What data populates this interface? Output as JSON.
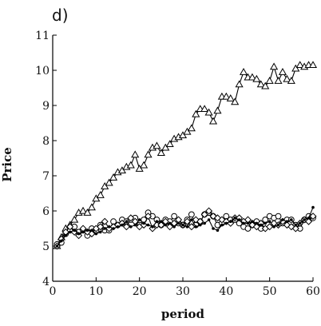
{
  "chart_data": {
    "type": "line",
    "panel_label": "d)",
    "xlabel": "period",
    "ylabel": "Price",
    "xlim": [
      0,
      60
    ],
    "ylim": [
      4,
      11
    ],
    "xticks": [
      0,
      10,
      20,
      30,
      40,
      50,
      60
    ],
    "yticks": [
      4,
      5,
      6,
      7,
      8,
      9,
      10,
      11
    ],
    "grid": false,
    "legend": "none",
    "x": [
      1,
      2,
      3,
      4,
      5,
      6,
      7,
      8,
      9,
      10,
      11,
      12,
      13,
      14,
      15,
      16,
      17,
      18,
      19,
      20,
      21,
      22,
      23,
      24,
      25,
      26,
      27,
      28,
      29,
      30,
      31,
      32,
      33,
      34,
      35,
      36,
      37,
      38,
      39,
      40,
      41,
      42,
      43,
      44,
      45,
      46,
      47,
      48,
      49,
      50,
      51,
      52,
      53,
      54,
      55,
      56,
      57,
      58,
      59,
      60
    ],
    "series": [
      {
        "marker": "triangle",
        "color": "#000000",
        "values": [
          5.0,
          5.25,
          5.5,
          5.6,
          5.75,
          5.95,
          6.0,
          5.95,
          6.1,
          6.35,
          6.45,
          6.7,
          6.8,
          6.95,
          7.1,
          7.15,
          7.25,
          7.3,
          7.6,
          7.2,
          7.3,
          7.6,
          7.8,
          7.85,
          7.65,
          7.8,
          7.9,
          8.05,
          8.1,
          8.15,
          8.25,
          8.35,
          8.75,
          8.9,
          8.9,
          8.8,
          8.55,
          8.85,
          9.25,
          9.25,
          9.2,
          9.1,
          9.6,
          9.95,
          9.8,
          9.8,
          9.75,
          9.6,
          9.55,
          9.7,
          10.1,
          9.7,
          9.95,
          9.75,
          9.7,
          10.05,
          10.15,
          10.1,
          10.15,
          10.15
        ]
      },
      {
        "marker": "circle",
        "color": "#000000",
        "values": [
          5.05,
          5.1,
          5.35,
          5.45,
          5.55,
          5.4,
          5.45,
          5.3,
          5.5,
          5.45,
          5.6,
          5.45,
          5.45,
          5.7,
          5.6,
          5.75,
          5.7,
          5.75,
          5.8,
          5.6,
          5.75,
          5.95,
          5.85,
          5.75,
          5.6,
          5.75,
          5.7,
          5.85,
          5.65,
          5.6,
          5.75,
          5.9,
          5.6,
          5.7,
          5.9,
          5.95,
          5.85,
          5.6,
          5.65,
          5.85,
          5.75,
          5.75,
          5.65,
          5.55,
          5.5,
          5.6,
          5.7,
          5.5,
          5.75,
          5.85,
          5.8,
          5.85,
          5.65,
          5.75,
          5.75,
          5.6,
          5.5,
          5.75,
          5.85,
          5.8
        ]
      },
      {
        "marker": "diamond",
        "color": "#000000",
        "values": [
          5.0,
          5.2,
          5.4,
          5.55,
          5.4,
          5.3,
          5.5,
          5.4,
          5.35,
          5.5,
          5.55,
          5.7,
          5.5,
          5.55,
          5.6,
          5.65,
          5.55,
          5.8,
          5.7,
          5.55,
          5.6,
          5.85,
          5.5,
          5.6,
          5.6,
          5.7,
          5.55,
          5.65,
          5.75,
          5.6,
          5.7,
          5.55,
          5.75,
          5.7,
          5.9,
          6.0,
          5.85,
          5.8,
          5.75,
          5.7,
          5.65,
          5.8,
          5.8,
          5.7,
          5.75,
          5.6,
          5.55,
          5.65,
          5.5,
          5.55,
          5.65,
          5.6,
          5.7,
          5.6,
          5.55,
          5.5,
          5.65,
          5.75,
          5.7,
          5.85
        ]
      },
      {
        "marker": "dot",
        "color": "#000000",
        "values": [
          5.0,
          5.15,
          5.3,
          5.4,
          5.45,
          5.35,
          5.4,
          5.45,
          5.45,
          5.35,
          5.4,
          5.5,
          5.55,
          5.5,
          5.55,
          5.6,
          5.7,
          5.55,
          5.6,
          5.75,
          5.65,
          5.6,
          5.55,
          5.7,
          5.7,
          5.6,
          5.65,
          5.55,
          5.65,
          5.6,
          5.55,
          5.75,
          5.55,
          5.6,
          5.65,
          5.75,
          5.5,
          5.45,
          5.6,
          5.65,
          5.7,
          5.8,
          5.75,
          5.65,
          5.65,
          5.7,
          5.65,
          5.6,
          5.65,
          5.7,
          5.55,
          5.6,
          5.75,
          5.7,
          5.75,
          5.6,
          5.65,
          5.75,
          5.8,
          6.1
        ]
      }
    ]
  }
}
